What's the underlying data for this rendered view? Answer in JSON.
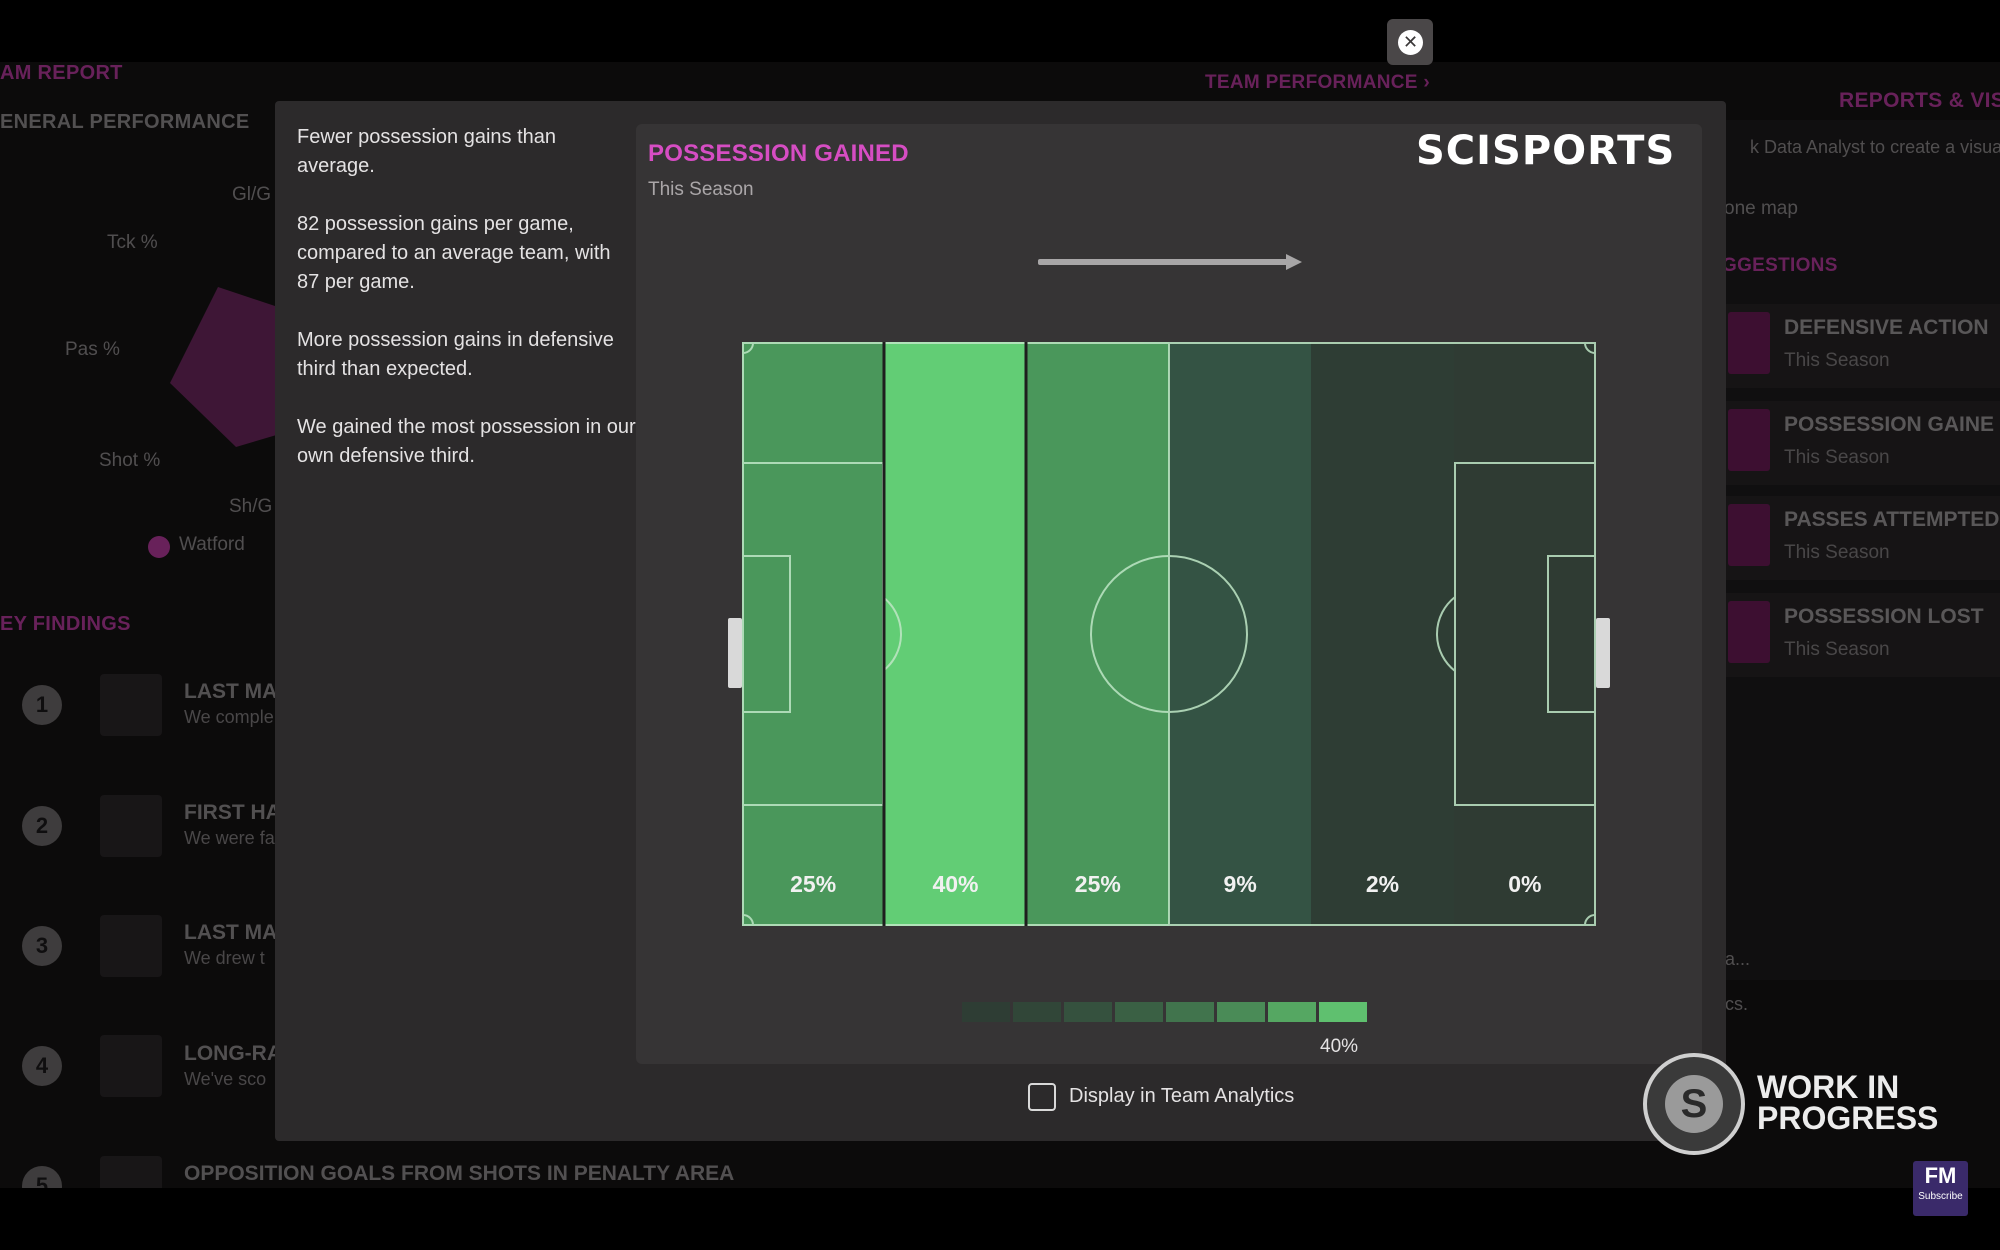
{
  "background": {
    "left": {
      "report_title": "AM REPORT",
      "general_performance": "ENERAL PERFORMANCE",
      "radar_labels": [
        "Gl/G",
        "Tck %",
        "Pas %",
        "Shot %",
        "Sh/G"
      ],
      "legend_team": "Watford",
      "key_findings": "EY FINDINGS",
      "findings": [
        {
          "num": "1",
          "title": "LAST MA",
          "sub": "We comple"
        },
        {
          "num": "2",
          "title": "FIRST HA",
          "sub": "We were fa"
        },
        {
          "num": "3",
          "title": "LAST MA",
          "sub": "We drew t"
        },
        {
          "num": "4",
          "title": "LONG-RA",
          "sub": "We've sco"
        },
        {
          "num": "5",
          "title": "OPPOSITION GOALS FROM SHOTS IN PENALTY AREA",
          "sub": ""
        }
      ]
    },
    "right": {
      "team_performance": "TEAM PERFORMANCE ›",
      "reports_visuals": "REPORTS & VIS",
      "data_analyst_hint": "k Data Analyst to create a visual",
      "zone_map": "one map",
      "suggestions": "GGESTIONS",
      "suggestion_items": [
        {
          "title": "DEFENSIVE ACTION",
          "sub": "This Season"
        },
        {
          "title": "POSSESSION GAINE",
          "sub": "This Season"
        },
        {
          "title": "PASSES ATTEMPTED",
          "sub": "This Season"
        },
        {
          "title": "POSSESSION LOST",
          "sub": "This Season"
        }
      ],
      "faded_1": "a...",
      "faded_2": "cs."
    }
  },
  "modal": {
    "description": [
      "Fewer possession gains than average.",
      "82 possession gains per game, compared to an average team, with 87 per game.",
      "More possession gains in defensive third than expected.",
      "We gained the most possession in our own defensive third."
    ],
    "card": {
      "title": "POSSESSION GAINED",
      "subtitle": "This Season",
      "brand": "SCISPORTS",
      "close_icon": "✕"
    },
    "zones": [
      {
        "label": "25%",
        "value": 25,
        "color": "#4a975b"
      },
      {
        "label": "40%",
        "value": 40,
        "color": "#62cd75"
      },
      {
        "label": "25%",
        "value": 25,
        "color": "#4a975b"
      },
      {
        "label": "9%",
        "value": 9,
        "color": "#345344"
      },
      {
        "label": "2%",
        "value": 2,
        "color": "#2e3d34"
      },
      {
        "label": "0%",
        "value": 0,
        "color": "#2f3b33"
      }
    ],
    "scale_colors": [
      "#2e3d34",
      "#314638",
      "#35513e",
      "#3a6044",
      "#41744d",
      "#4a8b57",
      "#55a762",
      "#5fc06f"
    ],
    "scale_max_label": "40%",
    "display_in_team_analytics": "Display in Team Analytics"
  },
  "badges": {
    "wip_line1": "WORK IN",
    "wip_line2": "PROGRESS",
    "wip_logo_letter": "S",
    "fm_label": "FM",
    "fm_sub": "Subscribe"
  }
}
